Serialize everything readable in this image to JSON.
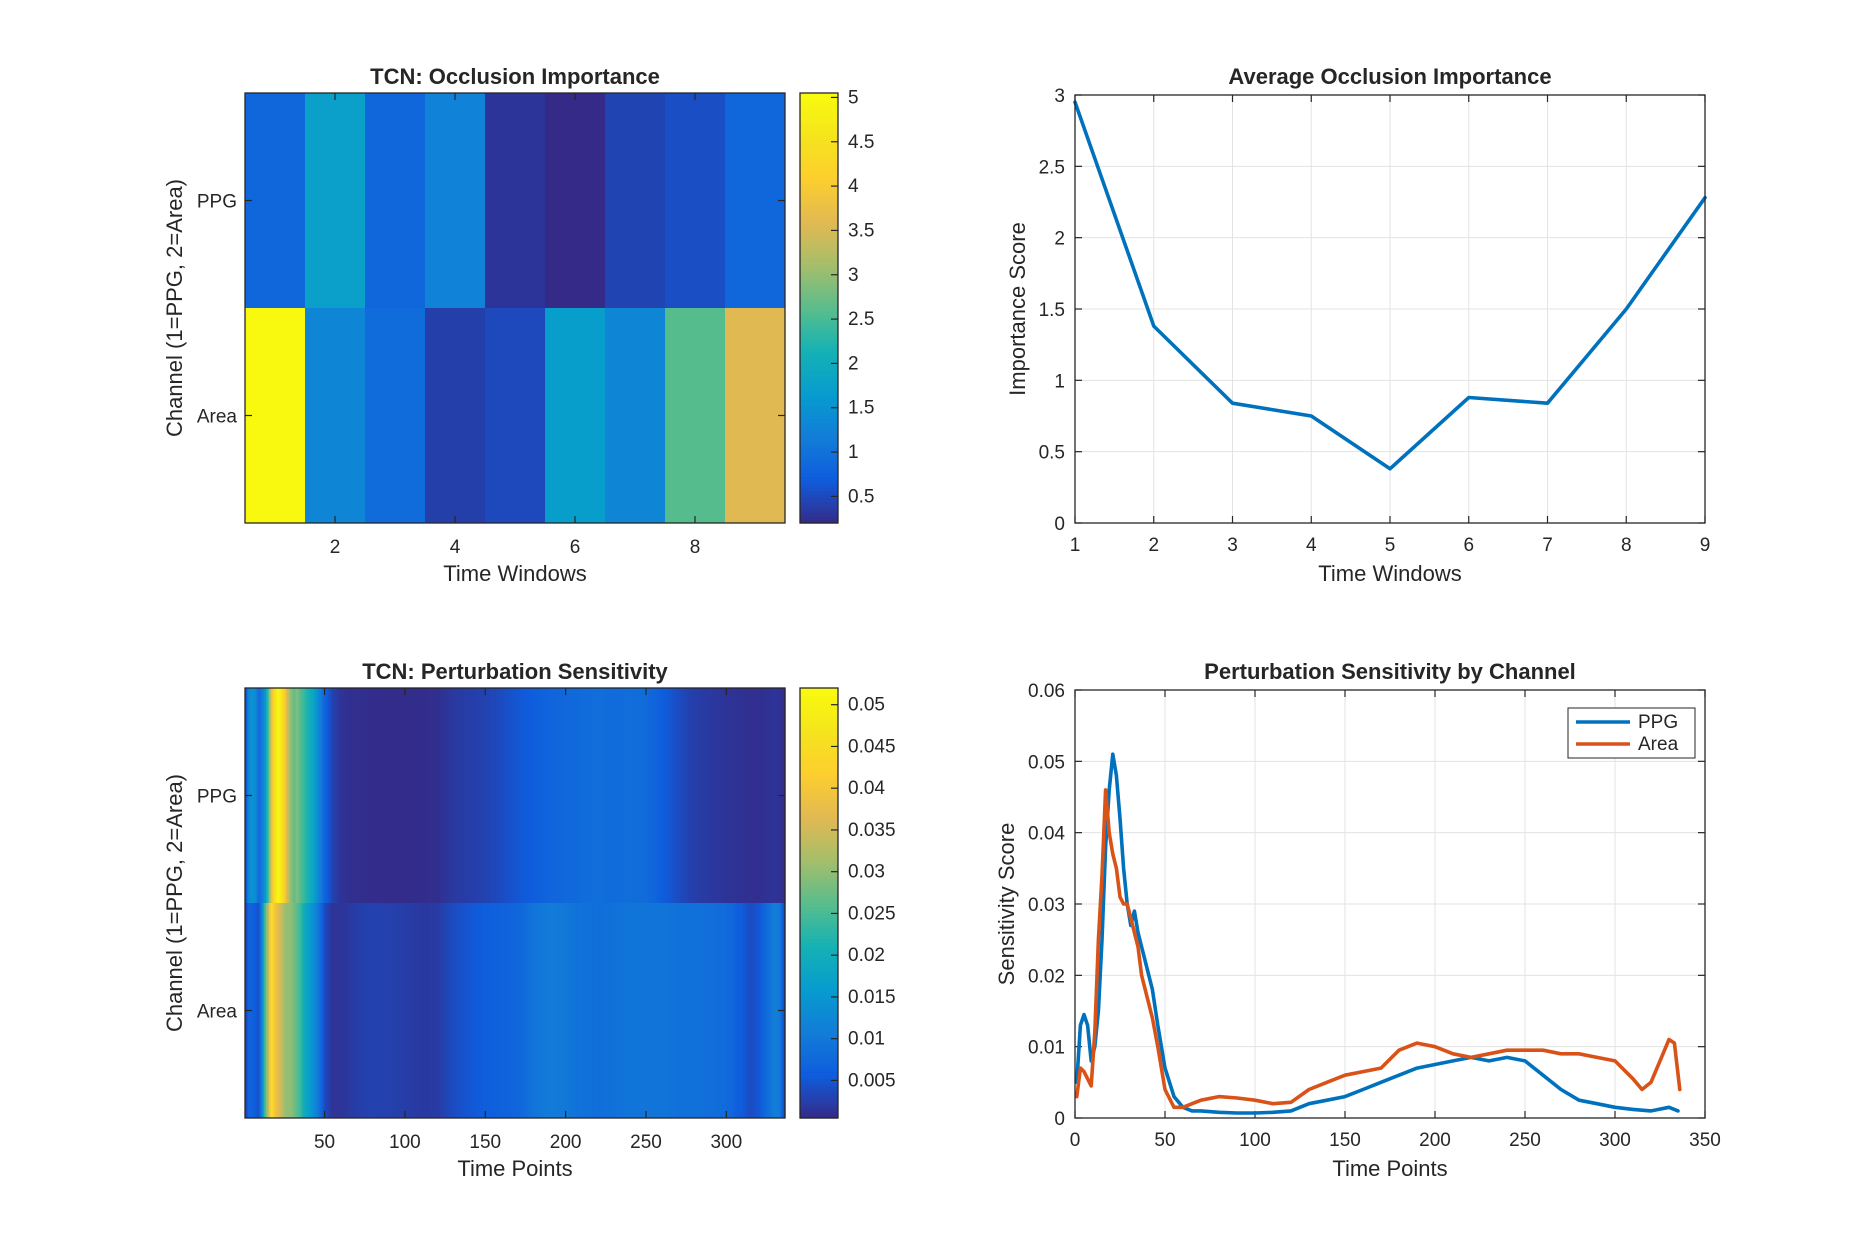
{
  "chart_data": [
    {
      "type": "heatmap",
      "title": "TCN: Occlusion Importance",
      "xlabel": "Time Windows",
      "ylabel": "Channel (1=PPG, 2=Area)",
      "rows": [
        "PPG",
        "Area"
      ],
      "columns": [
        1,
        2,
        3,
        4,
        5,
        6,
        7,
        8,
        9
      ],
      "x_ticks": [
        2,
        4,
        6,
        8
      ],
      "values": [
        [
          0.85,
          1.75,
          0.85,
          1.25,
          0.3,
          0.2,
          0.45,
          0.55,
          0.85
        ],
        [
          5.0,
          1.3,
          0.9,
          0.4,
          0.5,
          1.7,
          1.3,
          2.6,
          3.6
        ]
      ],
      "colorbar": {
        "ticks": [
          0.5,
          1,
          1.5,
          2,
          2.5,
          3,
          3.5,
          4,
          4.5,
          5
        ],
        "range": [
          0.2,
          5.05
        ]
      },
      "colormap": "parula"
    },
    {
      "type": "line",
      "title": "Average Occlusion Importance",
      "xlabel": "Time Windows",
      "ylabel": "Importance Score",
      "x": [
        1,
        2,
        3,
        4,
        5,
        6,
        7,
        8,
        9
      ],
      "series": [
        {
          "values": [
            2.95,
            1.38,
            0.84,
            0.75,
            0.38,
            0.88,
            0.84,
            1.5,
            2.28
          ],
          "color": "#0072BD"
        }
      ],
      "xlim": [
        1,
        9
      ],
      "ylim": [
        0,
        3
      ],
      "x_ticks": [
        1,
        2,
        3,
        4,
        5,
        6,
        7,
        8,
        9
      ],
      "y_ticks": [
        0,
        0.5,
        1,
        1.5,
        2,
        2.5,
        3
      ],
      "grid": true
    },
    {
      "type": "heatmap",
      "title": "TCN: Perturbation Sensitivity",
      "xlabel": "Time Points",
      "ylabel": "Channel (1=PPG, 2=Area)",
      "rows": [
        "PPG",
        "Area"
      ],
      "xlim": [
        0.5,
        336.5
      ],
      "x_ticks": [
        50,
        100,
        150,
        200,
        250,
        300
      ],
      "colorbar": {
        "ticks": [
          0.005,
          0.01,
          0.015,
          0.02,
          0.025,
          0.03,
          0.035,
          0.04,
          0.045,
          0.05
        ],
        "range": [
          0.0005,
          0.052
        ]
      },
      "colormap": "parula"
    },
    {
      "type": "line",
      "title": "Perturbation Sensitivity by Channel",
      "xlabel": "Time Points",
      "ylabel": "Sensitivity Score",
      "xlim": [
        0,
        350
      ],
      "ylim": [
        0,
        0.06
      ],
      "x_ticks": [
        0,
        50,
        100,
        150,
        200,
        250,
        300,
        350
      ],
      "y_ticks": [
        0,
        0.01,
        0.02,
        0.03,
        0.04,
        0.05,
        0.06
      ],
      "grid": true,
      "legend_position": "top-right",
      "series": [
        {
          "name": "PPG",
          "color": "#0072BD",
          "x": [
            1,
            3,
            5,
            7,
            9,
            11,
            13,
            15,
            17,
            19,
            21,
            23,
            25,
            27,
            29,
            31,
            33,
            35,
            37,
            40,
            43,
            46,
            50,
            55,
            60,
            65,
            70,
            80,
            90,
            100,
            110,
            120,
            130,
            140,
            150,
            160,
            170,
            180,
            190,
            200,
            210,
            220,
            230,
            240,
            250,
            260,
            270,
            280,
            290,
            300,
            310,
            320,
            330,
            335
          ],
          "values": [
            0.005,
            0.013,
            0.0145,
            0.013,
            0.008,
            0.01,
            0.015,
            0.025,
            0.038,
            0.046,
            0.051,
            0.048,
            0.042,
            0.035,
            0.03,
            0.027,
            0.029,
            0.026,
            0.024,
            0.021,
            0.018,
            0.013,
            0.007,
            0.003,
            0.0015,
            0.001,
            0.001,
            0.0008,
            0.0007,
            0.0007,
            0.0008,
            0.001,
            0.002,
            0.0025,
            0.003,
            0.004,
            0.005,
            0.006,
            0.007,
            0.0075,
            0.008,
            0.0085,
            0.008,
            0.0085,
            0.008,
            0.006,
            0.004,
            0.0025,
            0.002,
            0.0015,
            0.0012,
            0.001,
            0.0015,
            0.001
          ]
        },
        {
          "name": "Area",
          "color": "#D95319",
          "x": [
            1,
            3,
            5,
            7,
            9,
            11,
            13,
            15,
            17,
            19,
            21,
            23,
            25,
            27,
            29,
            31,
            33,
            35,
            37,
            40,
            43,
            46,
            50,
            55,
            60,
            65,
            70,
            80,
            90,
            100,
            110,
            120,
            130,
            140,
            150,
            160,
            170,
            180,
            190,
            200,
            210,
            220,
            230,
            240,
            250,
            260,
            270,
            280,
            290,
            300,
            310,
            315,
            320,
            325,
            330,
            333,
            336
          ],
          "values": [
            0.003,
            0.007,
            0.0065,
            0.0055,
            0.0045,
            0.012,
            0.025,
            0.034,
            0.046,
            0.04,
            0.037,
            0.035,
            0.031,
            0.03,
            0.03,
            0.028,
            0.026,
            0.024,
            0.02,
            0.017,
            0.014,
            0.01,
            0.004,
            0.0015,
            0.0015,
            0.002,
            0.0025,
            0.003,
            0.0028,
            0.0025,
            0.002,
            0.0022,
            0.004,
            0.005,
            0.006,
            0.0065,
            0.007,
            0.0095,
            0.0105,
            0.01,
            0.009,
            0.0085,
            0.009,
            0.0095,
            0.0095,
            0.0095,
            0.009,
            0.009,
            0.0085,
            0.008,
            0.0055,
            0.004,
            0.005,
            0.008,
            0.011,
            0.0105,
            0.004
          ]
        }
      ]
    }
  ]
}
